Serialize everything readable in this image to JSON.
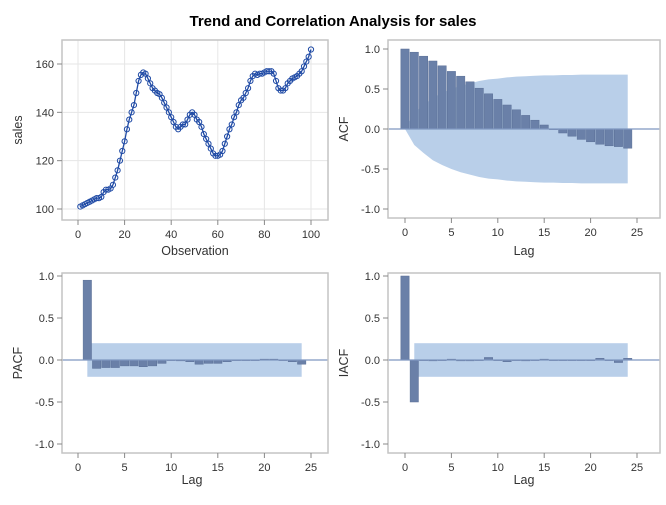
{
  "title": "Trend and Correlation Analysis for sales",
  "colors": {
    "series_line": "#1f4aa5",
    "bar": "#6a80a8",
    "band": "#b9cfe9",
    "zero_line": "#7f96c0",
    "frame": "#c4c4c4",
    "grid": "#e6e6e6"
  },
  "chart_data": [
    {
      "id": "series",
      "type": "line",
      "markers": "open-circle",
      "grid": true,
      "xlabel": "Observation",
      "ylabel": "sales",
      "xlim": [
        0,
        100
      ],
      "ylim": [
        100,
        160
      ],
      "xticks": [
        0,
        20,
        40,
        60,
        80,
        100
      ],
      "yticks": [
        100,
        120,
        140,
        160
      ],
      "x": [
        1,
        2,
        3,
        4,
        5,
        6,
        7,
        8,
        9,
        10,
        11,
        12,
        13,
        14,
        15,
        16,
        17,
        18,
        19,
        20,
        21,
        22,
        23,
        24,
        25,
        26,
        27,
        28,
        29,
        30,
        31,
        32,
        33,
        34,
        35,
        36,
        37,
        38,
        39,
        40,
        41,
        42,
        43,
        44,
        45,
        46,
        47,
        48,
        49,
        50,
        51,
        52,
        53,
        54,
        55,
        56,
        57,
        58,
        59,
        60,
        61,
        62,
        63,
        64,
        65,
        66,
        67,
        68,
        69,
        70,
        71,
        72,
        73,
        74,
        75,
        76,
        77,
        78,
        79,
        80,
        81,
        82,
        83,
        84,
        85,
        86,
        87,
        88,
        89,
        90,
        91,
        92,
        93,
        94,
        95,
        96,
        97,
        98,
        99,
        100
      ],
      "y": [
        101,
        101.5,
        102,
        102.5,
        103,
        103.5,
        104,
        104.5,
        104.5,
        105,
        107,
        108,
        108,
        108.5,
        110,
        113,
        116,
        120,
        124,
        128,
        133,
        137,
        140,
        143,
        148,
        153,
        155.5,
        156.5,
        156,
        154,
        152,
        150,
        149,
        148,
        147.5,
        146,
        144,
        142,
        140,
        138,
        136,
        134,
        133,
        134,
        135,
        135,
        137,
        139,
        140,
        139,
        137,
        136,
        134,
        131,
        129,
        127,
        125,
        123,
        122,
        122,
        122.5,
        124,
        127,
        130,
        133,
        135,
        138,
        140,
        143,
        145,
        146,
        148,
        150,
        153,
        155,
        156,
        155.5,
        156,
        156,
        156.5,
        157,
        157,
        157,
        156,
        153,
        150,
        149,
        149,
        150,
        152,
        153,
        154,
        154.5,
        155,
        156,
        157,
        159,
        161,
        163,
        166
      ]
    },
    {
      "id": "acf",
      "type": "bar",
      "xlabel": "Lag",
      "ylabel": "ACF",
      "xlim": [
        0,
        25
      ],
      "ylim": [
        -1,
        1
      ],
      "xticks": [
        0,
        5,
        10,
        15,
        20,
        25
      ],
      "yticks": [
        "1.0",
        "0.5",
        "0.0",
        "-0.5",
        "-1.0"
      ],
      "lags": [
        0,
        1,
        2,
        3,
        4,
        5,
        6,
        7,
        8,
        9,
        10,
        11,
        12,
        13,
        14,
        15,
        16,
        17,
        18,
        19,
        20,
        21,
        22,
        23,
        24
      ],
      "values": [
        1.0,
        0.96,
        0.91,
        0.85,
        0.79,
        0.72,
        0.66,
        0.59,
        0.51,
        0.44,
        0.37,
        0.3,
        0.24,
        0.17,
        0.11,
        0.05,
        0.0,
        -0.05,
        -0.09,
        -0.13,
        -0.16,
        -0.19,
        -0.21,
        -0.22,
        -0.24
      ],
      "confidence_band": [
        0,
        0.2,
        0.3,
        0.39,
        0.45,
        0.5,
        0.54,
        0.57,
        0.6,
        0.62,
        0.63,
        0.645,
        0.655,
        0.66,
        0.665,
        0.67,
        0.67,
        0.675,
        0.675,
        0.68,
        0.68,
        0.68,
        0.68,
        0.68,
        0.68
      ]
    },
    {
      "id": "pacf",
      "type": "bar",
      "xlabel": "Lag",
      "ylabel": "PACF",
      "xlim": [
        0,
        25
      ],
      "ylim": [
        -1,
        1
      ],
      "xticks": [
        0,
        5,
        10,
        15,
        20,
        25
      ],
      "yticks": [
        "1.0",
        "0.5",
        "0.0",
        "-0.5",
        "-1.0"
      ],
      "lags": [
        1,
        2,
        3,
        4,
        5,
        6,
        7,
        8,
        9,
        10,
        11,
        12,
        13,
        14,
        15,
        16,
        17,
        18,
        19,
        20,
        21,
        22,
        23,
        24
      ],
      "values": [
        0.95,
        -0.1,
        -0.09,
        -0.09,
        -0.07,
        -0.07,
        -0.08,
        -0.07,
        -0.04,
        0.0,
        -0.01,
        -0.02,
        -0.05,
        -0.04,
        -0.04,
        -0.02,
        0.0,
        0.0,
        0.0,
        0.01,
        0.01,
        0.0,
        -0.02,
        -0.05
      ],
      "confidence_band": 0.2
    },
    {
      "id": "iacf",
      "type": "bar",
      "xlabel": "Lag",
      "ylabel": "IACF",
      "xlim": [
        0,
        25
      ],
      "ylim": [
        -1,
        1
      ],
      "xticks": [
        0,
        5,
        10,
        15,
        20,
        25
      ],
      "yticks": [
        "1.0",
        "0.5",
        "0.0",
        "-0.5",
        "-1.0"
      ],
      "lags": [
        0,
        1,
        2,
        3,
        4,
        5,
        6,
        7,
        8,
        9,
        10,
        11,
        12,
        13,
        14,
        15,
        16,
        17,
        18,
        19,
        20,
        21,
        22,
        23,
        24
      ],
      "values": [
        1.0,
        -0.5,
        0.0,
        -0.01,
        0.0,
        0.01,
        -0.01,
        -0.01,
        0.0,
        0.03,
        0.0,
        -0.02,
        0.0,
        -0.01,
        0.0,
        0.01,
        0.0,
        0.0,
        0.0,
        0.0,
        0.0,
        0.02,
        0.0,
        -0.03,
        0.02
      ],
      "confidence_band": 0.2
    }
  ]
}
